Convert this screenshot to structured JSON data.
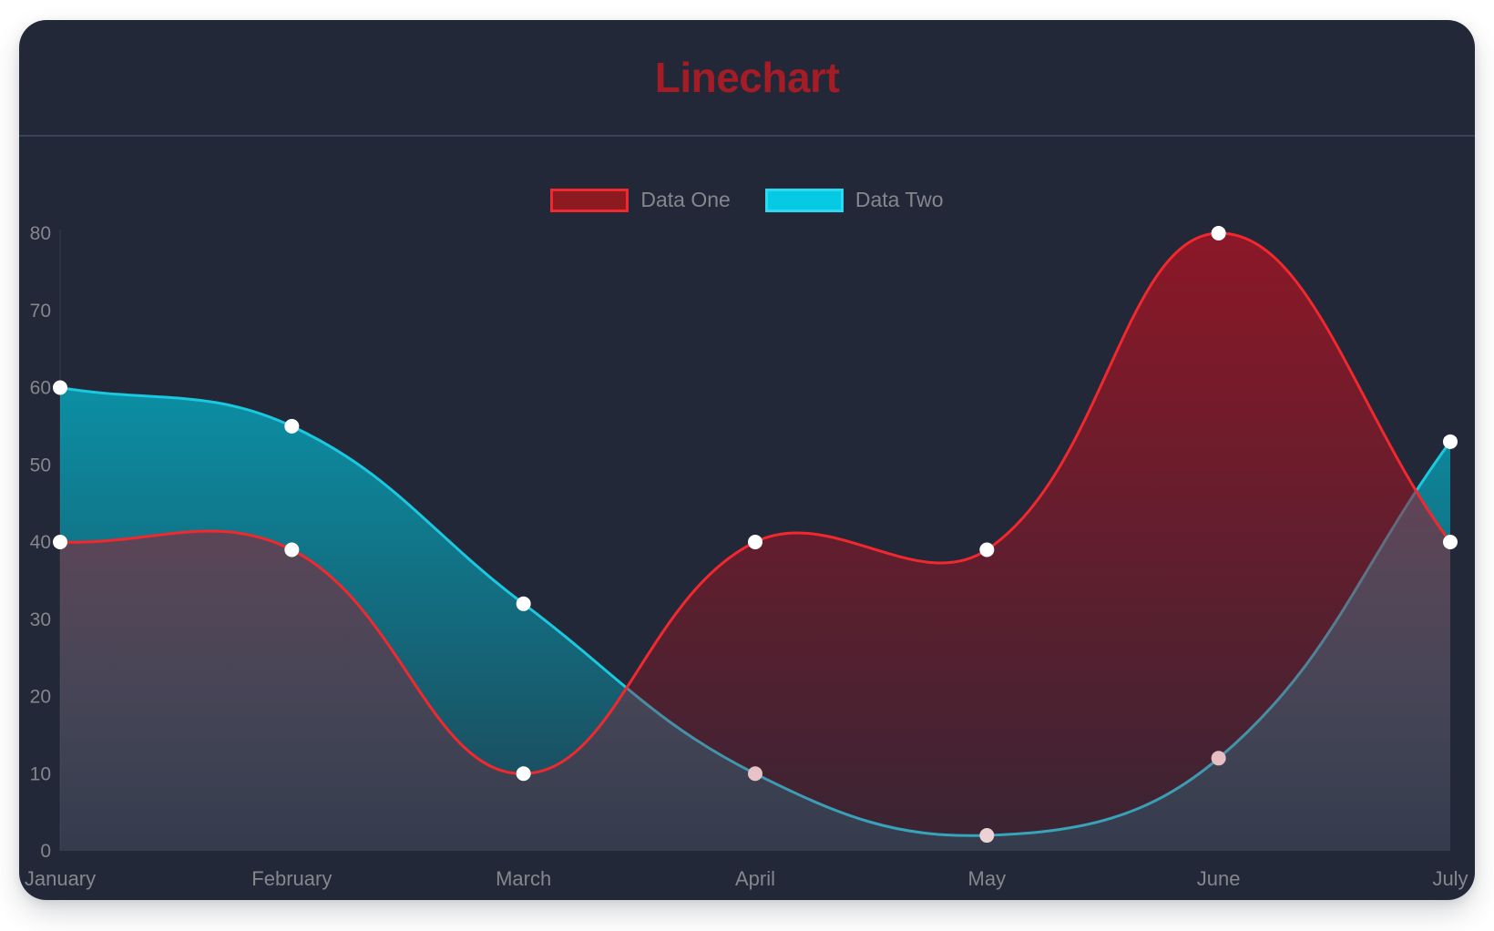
{
  "page": {
    "background": "#ffffff"
  },
  "card": {
    "background": "#222837",
    "divider_color": "#3a4459",
    "title_color": "#a31c26"
  },
  "chart_data": {
    "type": "line",
    "title": "Linechart",
    "categories": [
      "January",
      "February",
      "March",
      "April",
      "May",
      "June",
      "July"
    ],
    "series": [
      {
        "name": "Data One",
        "values": [
          40,
          39,
          10,
          40,
          39,
          80,
          40
        ],
        "line_color": "#f2282f",
        "fill_color": "#a21424",
        "legend_fill": "#8c1a1f",
        "legend_border": "#f2282f"
      },
      {
        "name": "Data Two",
        "values": [
          60,
          55,
          32,
          10,
          2,
          12,
          53
        ],
        "line_color": "#1cc8e0",
        "fill_color": "#00c4dc",
        "legend_fill": "#06c9e3",
        "legend_border": "#2bd9f2"
      }
    ],
    "y_ticks": [
      0,
      10,
      20,
      30,
      40,
      50,
      60,
      70,
      80
    ],
    "ylim": [
      0,
      80
    ],
    "legend_position": "top",
    "grid": false,
    "curve_tension": 0.4,
    "point_color": "#ffffff",
    "axis_text_color": "#85878d"
  }
}
